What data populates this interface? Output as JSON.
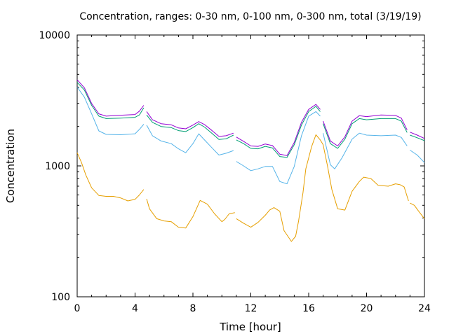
{
  "chart_data": {
    "type": "line",
    "title": "Concentration, ranges: 0-30 nm, 0-100 nm, 0-300 nm, total (3/19/19)",
    "xlabel": "Time [hour]",
    "ylabel": "Concentration",
    "xlim": [
      0,
      24
    ],
    "ylim": [
      100,
      10000
    ],
    "yscale": "log",
    "xticks": [
      0,
      4,
      8,
      12,
      16,
      20,
      24
    ],
    "xtick_labels": [
      "0",
      "4",
      "8",
      "12",
      "16",
      "20",
      "24"
    ],
    "yticks": [
      100,
      1000,
      10000
    ],
    "ytick_labels": [
      "100",
      "1000",
      "10000"
    ],
    "grid": false,
    "legend": "none",
    "series": [
      {
        "color": "#e69f00",
        "segments": [
          [
            [
              0,
              1260
            ],
            [
              0.3,
              1060
            ],
            [
              0.6,
              850
            ],
            [
              1.0,
              680
            ],
            [
              1.5,
              595
            ],
            [
              2,
              585
            ],
            [
              2.5,
              585
            ],
            [
              3,
              570
            ],
            [
              3.5,
              540
            ],
            [
              4,
              555
            ],
            [
              4.3,
              600
            ],
            [
              4.6,
              660
            ]
          ],
          [
            [
              4.8,
              560
            ],
            [
              5,
              470
            ],
            [
              5.5,
              395
            ],
            [
              6,
              380
            ],
            [
              6.5,
              375
            ],
            [
              7,
              340
            ],
            [
              7.5,
              335
            ],
            [
              8,
              410
            ],
            [
              8.5,
              545
            ],
            [
              9,
              510
            ],
            [
              9.5,
              430
            ],
            [
              10,
              375
            ],
            [
              10.2,
              390
            ],
            [
              10.5,
              430
            ],
            [
              10.9,
              440
            ]
          ],
          [
            [
              11,
              395
            ],
            [
              11.5,
              365
            ],
            [
              12,
              340
            ],
            [
              12.5,
              370
            ],
            [
              13,
              420
            ],
            [
              13.3,
              460
            ],
            [
              13.6,
              480
            ],
            [
              14,
              450
            ],
            [
              14.3,
              320
            ],
            [
              14.8,
              265
            ],
            [
              15.1,
              290
            ],
            [
              15.3,
              380
            ],
            [
              15.6,
              620
            ],
            [
              15.8,
              950
            ],
            [
              16.2,
              1400
            ],
            [
              16.5,
              1730
            ],
            [
              16.8,
              1580
            ],
            [
              17.0,
              1450
            ],
            [
              17.3,
              1000
            ],
            [
              17.6,
              660
            ],
            [
              18,
              470
            ],
            [
              18.5,
              460
            ],
            [
              19,
              640
            ],
            [
              19.5,
              760
            ],
            [
              19.8,
              820
            ],
            [
              20.3,
              800
            ],
            [
              20.8,
              710
            ],
            [
              21.5,
              700
            ],
            [
              22,
              730
            ],
            [
              22.3,
              720
            ],
            [
              22.6,
              690
            ],
            [
              22.9,
              540
            ]
          ],
          [
            [
              23,
              520
            ],
            [
              23.3,
              500
            ],
            [
              23.6,
              450
            ],
            [
              24,
              395
            ]
          ]
        ]
      },
      {
        "color": "#56b4e9",
        "segments": [
          [
            [
              0,
              4000
            ],
            [
              0.5,
              3350
            ],
            [
              1,
              2500
            ],
            [
              1.5,
              1850
            ],
            [
              2,
              1740
            ],
            [
              3,
              1730
            ],
            [
              4,
              1760
            ],
            [
              4.3,
              1900
            ],
            [
              4.6,
              2080
            ]
          ],
          [
            [
              4.8,
              2050
            ],
            [
              5.2,
              1700
            ],
            [
              5.8,
              1550
            ],
            [
              6.5,
              1480
            ],
            [
              7,
              1350
            ],
            [
              7.5,
              1260
            ],
            [
              8,
              1480
            ],
            [
              8.4,
              1760
            ],
            [
              8.8,
              1580
            ],
            [
              9.3,
              1380
            ],
            [
              9.8,
              1210
            ],
            [
              10.3,
              1250
            ],
            [
              10.8,
              1310
            ]
          ],
          [
            [
              11,
              1080
            ],
            [
              11.5,
              1000
            ],
            [
              12,
              920
            ],
            [
              12.5,
              950
            ],
            [
              13,
              990
            ],
            [
              13.5,
              990
            ],
            [
              14,
              760
            ],
            [
              14.5,
              730
            ],
            [
              15,
              990
            ],
            [
              15.5,
              1700
            ],
            [
              16,
              2400
            ],
            [
              16.5,
              2600
            ],
            [
              16.8,
              2400
            ]
          ],
          [
            [
              17,
              1780
            ],
            [
              17.5,
              1020
            ],
            [
              17.8,
              950
            ],
            [
              18.3,
              1150
            ],
            [
              19,
              1600
            ],
            [
              19.5,
              1780
            ],
            [
              20,
              1720
            ],
            [
              21,
              1700
            ],
            [
              22,
              1720
            ],
            [
              22.4,
              1650
            ],
            [
              22.8,
              1420
            ]
          ],
          [
            [
              23,
              1320
            ],
            [
              23.5,
              1210
            ],
            [
              24,
              1060
            ]
          ]
        ]
      },
      {
        "color": "#009e73",
        "segments": [
          [
            [
              0,
              4350
            ],
            [
              0.5,
              3800
            ],
            [
              1,
              2900
            ],
            [
              1.5,
              2400
            ],
            [
              2,
              2300
            ],
            [
              3,
              2320
            ],
            [
              4,
              2350
            ],
            [
              4.3,
              2450
            ],
            [
              4.6,
              2780
            ]
          ],
          [
            [
              4.8,
              2450
            ],
            [
              5.2,
              2150
            ],
            [
              5.8,
              2000
            ],
            [
              6.5,
              1960
            ],
            [
              7,
              1860
            ],
            [
              7.5,
              1830
            ],
            [
              8,
              1960
            ],
            [
              8.4,
              2100
            ],
            [
              8.8,
              1980
            ],
            [
              9.3,
              1780
            ],
            [
              9.8,
              1590
            ],
            [
              10.3,
              1610
            ],
            [
              10.8,
              1720
            ]
          ],
          [
            [
              11,
              1580
            ],
            [
              11.5,
              1480
            ],
            [
              12,
              1360
            ],
            [
              12.5,
              1350
            ],
            [
              13,
              1410
            ],
            [
              13.5,
              1370
            ],
            [
              14,
              1180
            ],
            [
              14.5,
              1160
            ],
            [
              15,
              1450
            ],
            [
              15.5,
              2050
            ],
            [
              16,
              2600
            ],
            [
              16.5,
              2850
            ],
            [
              16.8,
              2600
            ]
          ],
          [
            [
              17,
              2100
            ],
            [
              17.5,
              1480
            ],
            [
              18,
              1360
            ],
            [
              18.5,
              1600
            ],
            [
              19,
              2100
            ],
            [
              19.5,
              2300
            ],
            [
              20,
              2250
            ],
            [
              21,
              2300
            ],
            [
              22,
              2300
            ],
            [
              22.4,
              2200
            ],
            [
              22.8,
              1800
            ]
          ],
          [
            [
              23,
              1720
            ],
            [
              23.5,
              1640
            ],
            [
              24,
              1560
            ]
          ]
        ]
      },
      {
        "color": "#9400d3",
        "segments": [
          [
            [
              0,
              4550
            ],
            [
              0.5,
              3950
            ],
            [
              1,
              3000
            ],
            [
              1.5,
              2500
            ],
            [
              2,
              2400
            ],
            [
              3,
              2440
            ],
            [
              4,
              2470
            ],
            [
              4.3,
              2620
            ],
            [
              4.6,
              2900
            ]
          ],
          [
            [
              4.8,
              2600
            ],
            [
              5.2,
              2250
            ],
            [
              5.8,
              2100
            ],
            [
              6.5,
              2060
            ],
            [
              7,
              1950
            ],
            [
              7.5,
              1920
            ],
            [
              8,
              2050
            ],
            [
              8.4,
              2180
            ],
            [
              8.8,
              2070
            ],
            [
              9.3,
              1870
            ],
            [
              9.8,
              1680
            ],
            [
              10.3,
              1700
            ],
            [
              10.8,
              1780
            ]
          ],
          [
            [
              11,
              1660
            ],
            [
              11.5,
              1540
            ],
            [
              12,
              1420
            ],
            [
              12.5,
              1410
            ],
            [
              13,
              1470
            ],
            [
              13.5,
              1430
            ],
            [
              14,
              1230
            ],
            [
              14.5,
              1200
            ],
            [
              15,
              1510
            ],
            [
              15.5,
              2150
            ],
            [
              16,
              2700
            ],
            [
              16.5,
              2950
            ],
            [
              16.8,
              2700
            ]
          ],
          [
            [
              17,
              2200
            ],
            [
              17.5,
              1550
            ],
            [
              18,
              1420
            ],
            [
              18.5,
              1670
            ],
            [
              19,
              2200
            ],
            [
              19.5,
              2420
            ],
            [
              20,
              2380
            ],
            [
              21,
              2450
            ],
            [
              22,
              2430
            ],
            [
              22.4,
              2320
            ],
            [
              22.8,
              1880
            ]
          ],
          [
            [
              23,
              1810
            ],
            [
              23.5,
              1720
            ],
            [
              24,
              1620
            ]
          ]
        ]
      }
    ]
  }
}
